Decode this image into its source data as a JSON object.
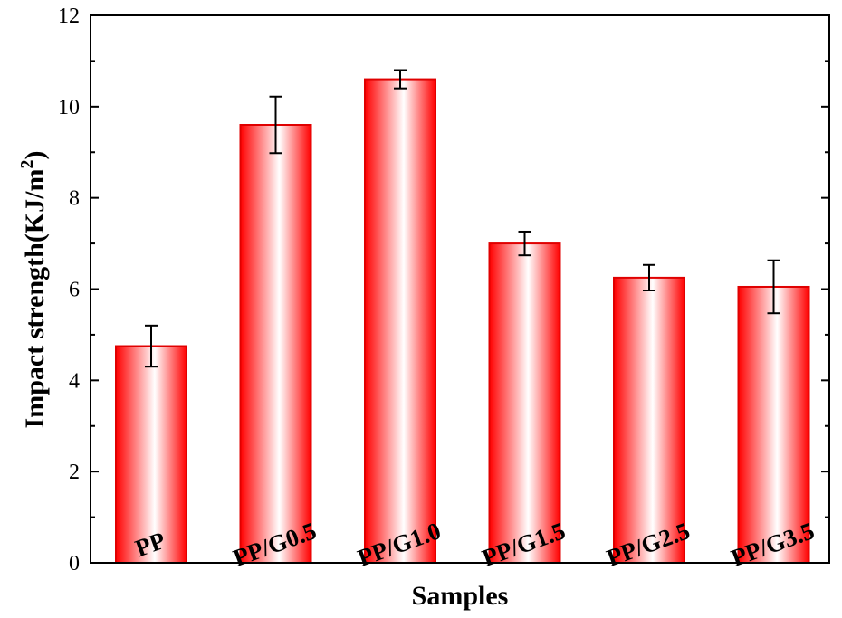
{
  "chart_data": {
    "type": "bar",
    "categories": [
      "PP",
      "PP/G0.5",
      "PP/G1.0",
      "PP/G1.5",
      "PP/G2.5",
      "PP/G3.5"
    ],
    "values": [
      4.75,
      9.6,
      10.6,
      7.0,
      6.25,
      6.05
    ],
    "errors": [
      0.45,
      0.62,
      0.2,
      0.26,
      0.28,
      0.58
    ],
    "xlabel": "Samples",
    "ylabel": "Impact strength(KJ/m",
    "ylabel_sup": "2",
    "ylabel_close": ")",
    "ylim": [
      0,
      12
    ],
    "yticks": [
      "0",
      "2",
      "4",
      "6",
      "8",
      "10",
      "12"
    ],
    "grid": false,
    "bar_color": "#ff0000",
    "bar_edge_color": "#e00000"
  }
}
